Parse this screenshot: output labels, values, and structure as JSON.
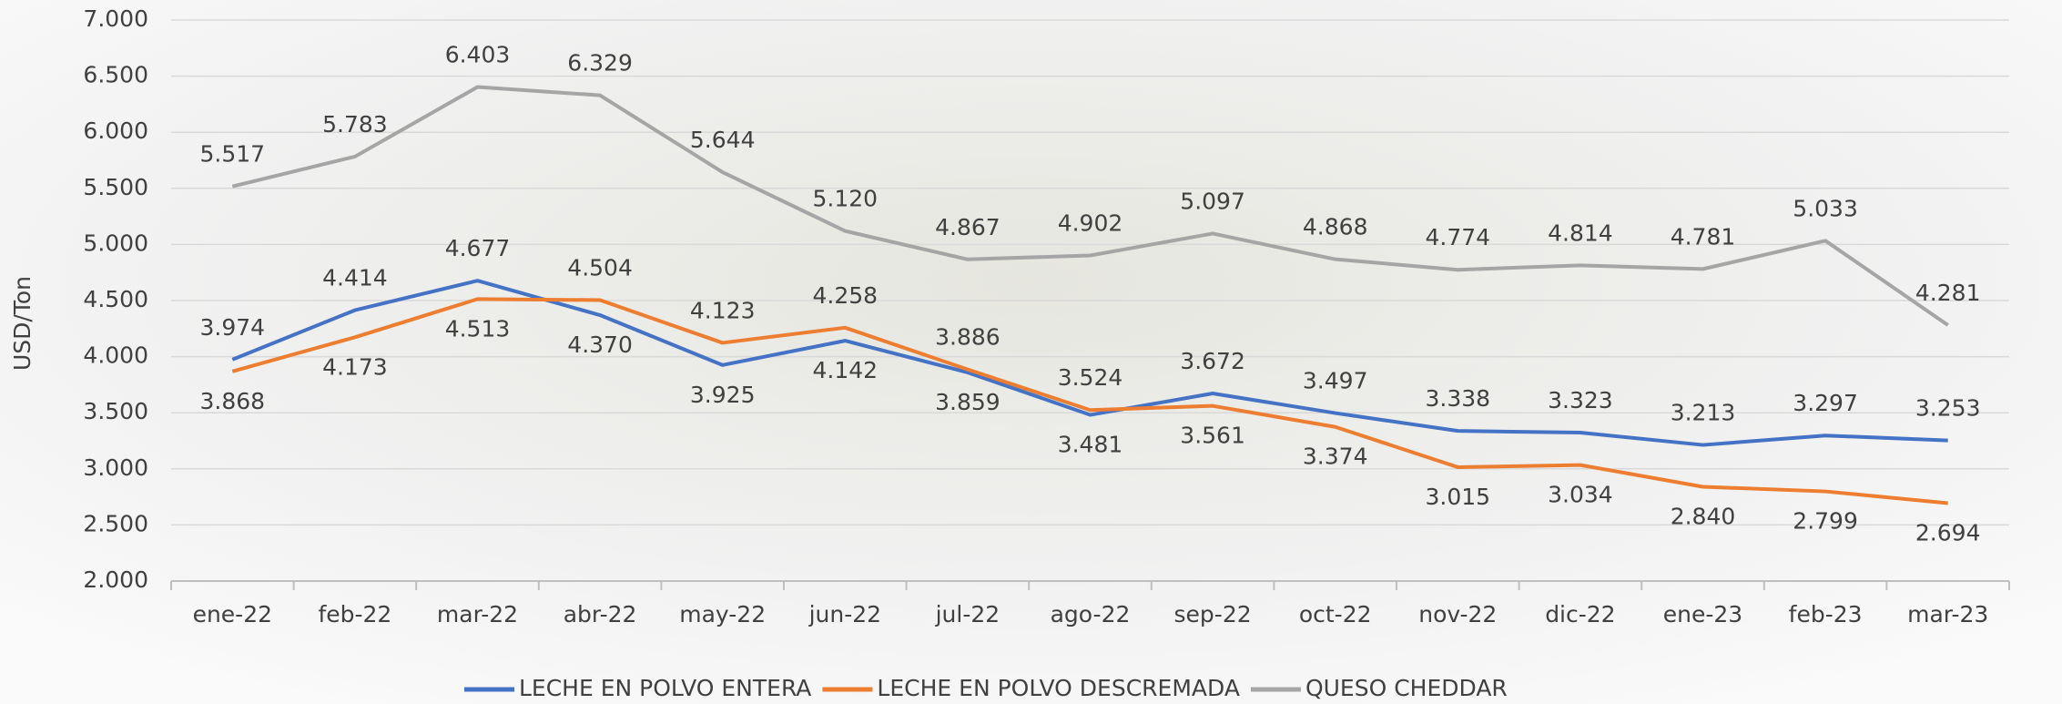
{
  "chart_data": {
    "type": "line",
    "y_label": "USD/Ton",
    "categories": [
      "ene-22",
      "feb-22",
      "mar-22",
      "abr-22",
      "may-22",
      "jun-22",
      "jul-22",
      "ago-22",
      "sep-22",
      "oct-22",
      "nov-22",
      "dic-22",
      "ene-23",
      "feb-23",
      "mar-23"
    ],
    "series": [
      {
        "name": "LECHE EN POLVO ENTERA",
        "color": "#4472c4",
        "values": [
          3974,
          4414,
          4677,
          4370,
          3925,
          4142,
          3859,
          3481,
          3672,
          3497,
          3338,
          3323,
          3213,
          3297,
          3253
        ],
        "value_labels": [
          "3.974",
          "4.414",
          "4.677",
          "4.370",
          "3.925",
          "4.142",
          "3.859",
          "3.481",
          "3.672",
          "3.497",
          "3.338",
          "3.323",
          "3.213",
          "3.297",
          "3.253"
        ]
      },
      {
        "name": "LECHE EN POLVO DESCREMADA",
        "color": "#ed7d31",
        "values": [
          3868,
          4173,
          4513,
          4504,
          4123,
          4258,
          3886,
          3524,
          3561,
          3374,
          3015,
          3034,
          2840,
          2799,
          2694
        ],
        "value_labels": [
          "3.868",
          "4.173",
          "4.513",
          "4.504",
          "4.123",
          "4.258",
          "3.886",
          "3.524",
          "3.561",
          "3.374",
          "3.015",
          "3.034",
          "2.840",
          "2.799",
          "2.694"
        ]
      },
      {
        "name": "QUESO CHEDDAR",
        "color": "#a5a5a5",
        "values": [
          5517,
          5783,
          6403,
          6329,
          5644,
          5120,
          4867,
          4902,
          5097,
          4868,
          4774,
          4814,
          4781,
          5033,
          4281
        ],
        "value_labels": [
          "5.517",
          "5.783",
          "6.403",
          "6.329",
          "5.644",
          "5.120",
          "4.867",
          "4.902",
          "5.097",
          "4.868",
          "4.774",
          "4.814",
          "4.781",
          "5.033",
          "4.281"
        ]
      }
    ],
    "ylim": [
      2000,
      7000
    ],
    "yticks": [
      {
        "value": 2000,
        "label": "2.000"
      },
      {
        "value": 2500,
        "label": "2.500"
      },
      {
        "value": 3000,
        "label": "3.000"
      },
      {
        "value": 3500,
        "label": "3.500"
      },
      {
        "value": 4000,
        "label": "4.000"
      },
      {
        "value": 4500,
        "label": "4.500"
      },
      {
        "value": 5000,
        "label": "5.000"
      },
      {
        "value": 5500,
        "label": "5.500"
      },
      {
        "value": 6000,
        "label": "6.000"
      },
      {
        "value": 6500,
        "label": "6.500"
      },
      {
        "value": 7000,
        "label": "7.000"
      }
    ],
    "grid": true,
    "legend": "bottom"
  }
}
